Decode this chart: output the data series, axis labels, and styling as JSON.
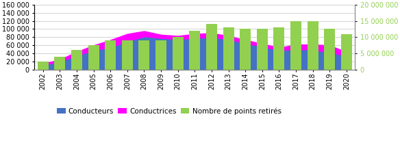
{
  "years": [
    "2002",
    "2003",
    "2004",
    "2005",
    "2006",
    "2007",
    "2008",
    "2009",
    "2010",
    "2011",
    "2012",
    "2013",
    "2014",
    "2015",
    "2016",
    "2017",
    "2018",
    "2019",
    "2020"
  ],
  "conducteurs": [
    12000,
    20000,
    35000,
    48000,
    55000,
    70000,
    82000,
    78000,
    75000,
    78000,
    80000,
    75000,
    65000,
    57000,
    48000,
    50000,
    50000,
    42000,
    35000
  ],
  "conductrices_add": [
    3000,
    5000,
    9000,
    12000,
    18000,
    18000,
    13000,
    8000,
    8000,
    10000,
    10000,
    8000,
    8000,
    7000,
    6000,
    12000,
    12000,
    18000,
    8000
  ],
  "points_retires": [
    2500000,
    4000000,
    6000000,
    7500000,
    9000000,
    9000000,
    9000000,
    9000000,
    10000000,
    12000000,
    14000000,
    13000000,
    12500000,
    12500000,
    13000000,
    15000000,
    15000000,
    12500000,
    11000000
  ],
  "color_conducteurs": "#4472C4",
  "color_conductrices": "#FF00FF",
  "color_points": "#92D050",
  "left_ylim": [
    0,
    160000
  ],
  "right_ylim": [
    0,
    20000000
  ],
  "left_yticks": [
    0,
    20000,
    40000,
    60000,
    80000,
    100000,
    120000,
    140000,
    160000
  ],
  "right_yticks": [
    0,
    5000000,
    10000000,
    15000000,
    20000000
  ],
  "legend_labels": [
    "Conducteurs",
    "Conductrices",
    "Nombre de points retirés"
  ],
  "background_color": "#FFFFFF",
  "grid_color": "#C0C0C0"
}
